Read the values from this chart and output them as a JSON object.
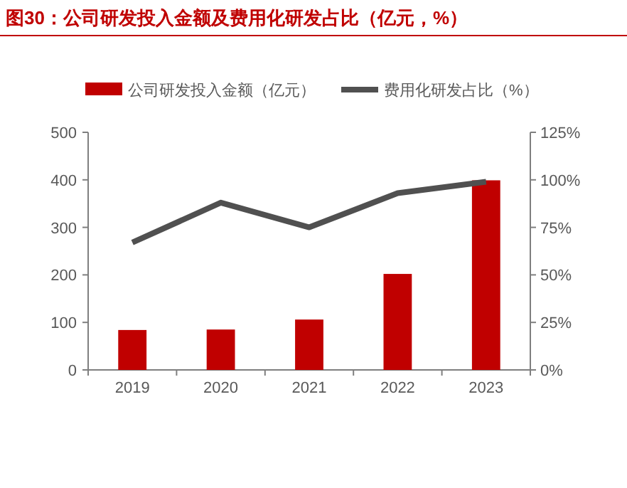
{
  "chart_data": {
    "type": "bar",
    "title": "图30：公司研发投入金额及费用化研发占比（亿元，%）",
    "categories": [
      "2019",
      "2020",
      "2021",
      "2022",
      "2023"
    ],
    "series": [
      {
        "name": "公司研发投入金额（亿元）",
        "color": "#c00000",
        "values": [
          84,
          85,
          106,
          202,
          399
        ]
      },
      {
        "name": "费用化研发占比（%）",
        "type": "line",
        "axis": "y2",
        "color": "#505050",
        "values": [
          67,
          88,
          75,
          93,
          99
        ]
      }
    ],
    "ylim": [
      0,
      500
    ],
    "yticks": [
      0,
      100,
      200,
      300,
      400,
      500
    ],
    "y2lim": [
      0,
      125
    ],
    "y2ticks": [
      {
        "value": 0,
        "label": "0%"
      },
      {
        "value": 25,
        "label": "25%"
      },
      {
        "value": 50,
        "label": "50%"
      },
      {
        "value": 75,
        "label": "75%"
      },
      {
        "value": 100,
        "label": "100%"
      },
      {
        "value": 125,
        "label": "125%"
      }
    ],
    "grid": false,
    "legend": "top",
    "marker": "none",
    "line_style": "solid"
  }
}
